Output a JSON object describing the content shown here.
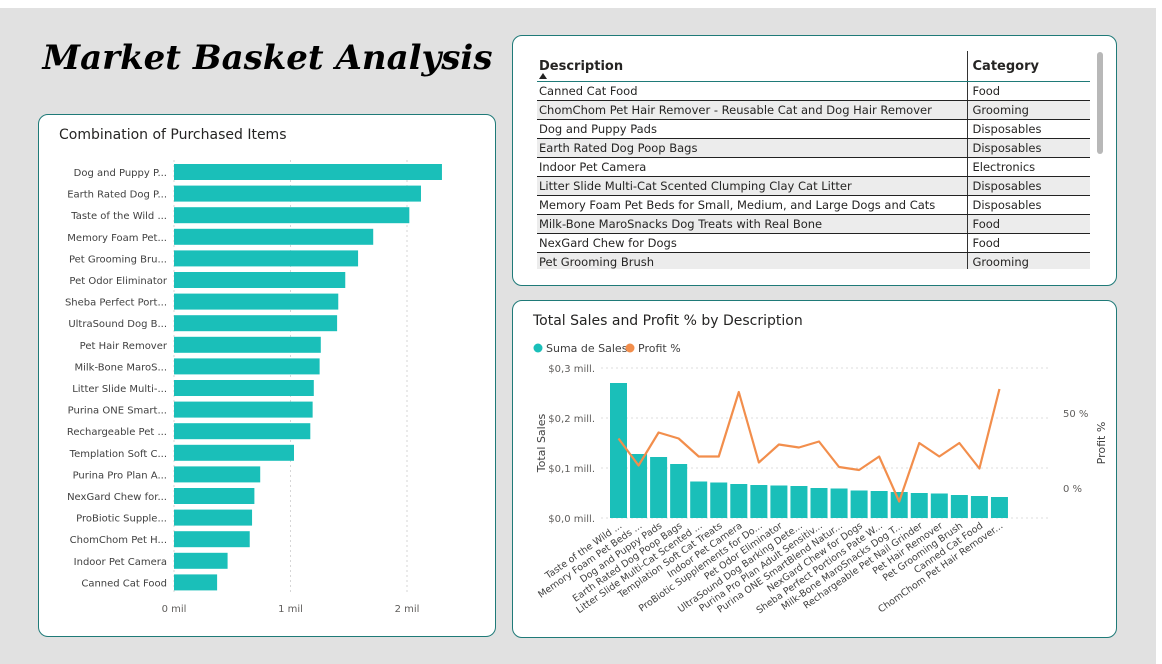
{
  "page_title": "Market Basket Analysis",
  "table": {
    "columns": [
      "Description",
      "Category"
    ],
    "rows": [
      [
        "Canned Cat Food",
        "Food"
      ],
      [
        "ChomChom Pet Hair Remover - Reusable Cat and Dog Hair Remover",
        "Grooming"
      ],
      [
        "Dog and Puppy Pads",
        "Disposables"
      ],
      [
        "Earth Rated Dog Poop Bags",
        "Disposables"
      ],
      [
        "Indoor Pet Camera",
        "Electronics"
      ],
      [
        "Litter Slide Multi-Cat Scented Clumping Clay Cat Litter",
        "Disposables"
      ],
      [
        "Memory Foam Pet Beds for Small, Medium, and Large Dogs and Cats",
        "Disposables"
      ],
      [
        "Milk-Bone MaroSnacks Dog Treats with Real Bone",
        "Food"
      ],
      [
        "NexGard Chew for Dogs",
        "Food"
      ],
      [
        "Pet Grooming Brush",
        "Grooming"
      ]
    ]
  },
  "chart_data": [
    {
      "type": "bar",
      "orientation": "horizontal",
      "title": "Combination of Purchased Items",
      "color": "#1ABFB9",
      "categories": [
        "Dog and Puppy P...",
        "Earth Rated Dog P...",
        "Taste of the Wild ...",
        "Memory Foam Pet...",
        "Pet Grooming Bru...",
        "Pet Odor Eliminator",
        "Sheba Perfect Port...",
        "UltraSound Dog B...",
        "Pet Hair Remover",
        "Milk-Bone MaroS...",
        "Litter Slide Multi-...",
        "Purina ONE Smart...",
        "Rechargeable Pet ...",
        "Templation Soft C...",
        "Purina Pro Plan A...",
        "NexGard Chew for...",
        "ProBiotic Supple...",
        "ChomChom Pet H...",
        "Indoor Pet Camera",
        "Canned Cat Food"
      ],
      "values": [
        2.3,
        2.12,
        2.02,
        1.71,
        1.58,
        1.47,
        1.41,
        1.4,
        1.26,
        1.25,
        1.2,
        1.19,
        1.17,
        1.03,
        0.74,
        0.69,
        0.67,
        0.65,
        0.46,
        0.37
      ],
      "xticks": [
        "0 mil",
        "1 mil",
        "2 mil"
      ],
      "xlim": [
        0,
        2.5
      ],
      "grid": true
    },
    {
      "type": "bar+line",
      "title": "Total Sales and Profit % by Description",
      "legend": [
        {
          "name": "Suma de Sales",
          "color": "#1ABFB9"
        },
        {
          "name": "Profit %",
          "color": "#F28E4C"
        }
      ],
      "legend_position": "top-left",
      "ylabel": "Total Sales",
      "y2label": "Profit %",
      "yticks": [
        "$0,0 mill.",
        "$0,1 mill.",
        "$0,2 mill.",
        "$0,3 mill."
      ],
      "y2ticks": [
        "0 %",
        "50 %"
      ],
      "ylim": [
        0,
        0.3
      ],
      "y2lim": [
        -60,
        100
      ],
      "categories": [
        "Taste of the Wild ...",
        "Memory Foam Pet Beds ...",
        "Dog and Puppy Pads",
        "Earth Rated Dog Poop Bags",
        "Litter Slide Multi-Cat Scented ...",
        "Templation Soft Cat Treats",
        "Indoor Pet Camera",
        "ProBiotic Supplements for Do...",
        "Pet Odor Eliminator",
        "UltraSound Dog Barking Dete...",
        "Purina Pro Plan Adult Sensitiv...",
        "Purina ONE SmartBlend Natur...",
        "NexGard Chew for Dogs",
        "Sheba Perfect Portions Pate W...",
        "Milk-Bone MaroSnacks Dog T...",
        "Rechargeable Pet Nail Grinder",
        "Pet Hair Remover",
        "Pet Grooming Brush",
        "Canned Cat Food",
        "ChomChom Pet Hair Remover..."
      ],
      "series": [
        {
          "name": "Suma de Sales",
          "values": [
            0.27,
            0.128,
            0.122,
            0.108,
            0.073,
            0.071,
            0.068,
            0.066,
            0.065,
            0.064,
            0.06,
            0.059,
            0.055,
            0.054,
            0.052,
            0.05,
            0.049,
            0.046,
            0.044,
            0.042
          ]
        },
        {
          "name": "Profit %",
          "values": [
            33,
            15,
            37,
            33,
            21,
            21,
            64,
            17,
            29,
            27,
            31,
            14,
            12,
            21,
            -9,
            30,
            21,
            30,
            13,
            66
          ]
        }
      ]
    }
  ]
}
